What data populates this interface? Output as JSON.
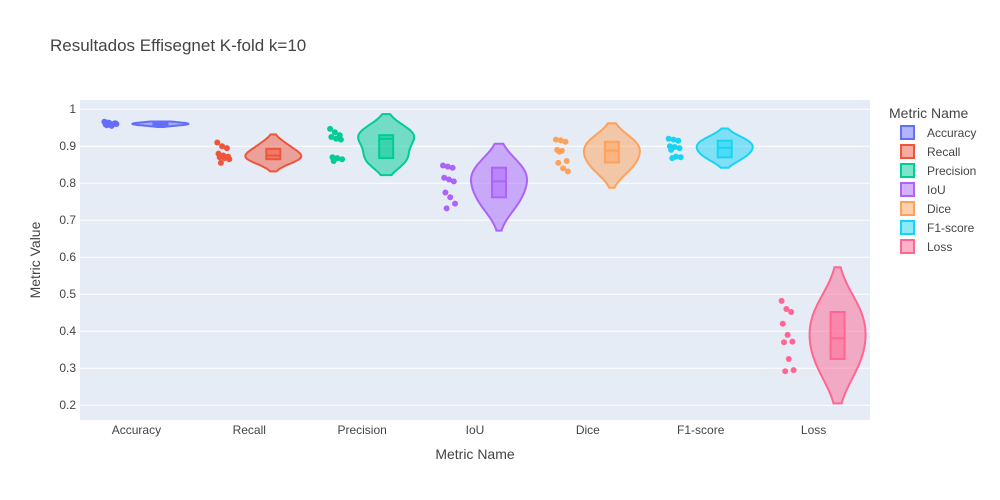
{
  "chart_data": {
    "type": "violin",
    "title": "Resultados Effisegnet K-fold k=10",
    "xlabel": "Metric Name",
    "ylabel": "Metric Value",
    "ylim": [
      0.16,
      1.025
    ],
    "yticks": [
      0.2,
      0.3,
      0.4,
      0.5,
      0.6,
      0.7,
      0.8,
      0.9,
      1
    ],
    "ytick_labels": [
      "0.2",
      "0.3",
      "0.4",
      "0.5",
      "0.6",
      "0.7",
      "0.8",
      "0.9",
      "1"
    ],
    "grid": true,
    "legend_title": "Metric Name",
    "legend_position": "right",
    "categories": [
      "Accuracy",
      "Recall",
      "Precision",
      "IoU",
      "Dice",
      "F1-score",
      "Loss"
    ],
    "series": [
      {
        "name": "Accuracy",
        "color": "#636efa",
        "points": [
          0.966,
          0.963,
          0.961,
          0.959,
          0.958,
          0.962,
          0.957,
          0.955,
          0.96,
          0.964
        ],
        "min": 0.952,
        "q1": 0.956,
        "median": 0.96,
        "q3": 0.963,
        "max": 0.967
      },
      {
        "name": "Recall",
        "color": "#ef553b",
        "points": [
          0.91,
          0.9,
          0.895,
          0.88,
          0.875,
          0.872,
          0.87,
          0.868,
          0.865,
          0.855
        ],
        "min": 0.832,
        "q1": 0.865,
        "median": 0.875,
        "q3": 0.893,
        "max": 0.932
      },
      {
        "name": "Precision",
        "color": "#00cc96",
        "points": [
          0.947,
          0.938,
          0.93,
          0.925,
          0.92,
          0.918,
          0.87,
          0.868,
          0.865,
          0.86
        ],
        "min": 0.822,
        "q1": 0.868,
        "median": 0.92,
        "q3": 0.93,
        "max": 0.987
      },
      {
        "name": "IoU",
        "color": "#ab63fa",
        "points": [
          0.848,
          0.845,
          0.842,
          0.815,
          0.81,
          0.805,
          0.775,
          0.762,
          0.745,
          0.732
        ],
        "min": 0.672,
        "q1": 0.762,
        "median": 0.805,
        "q3": 0.842,
        "max": 0.907
      },
      {
        "name": "Dice",
        "color": "#ffa15a",
        "points": [
          0.918,
          0.916,
          0.912,
          0.89,
          0.888,
          0.86,
          0.855,
          0.84,
          0.832,
          0.885
        ],
        "min": 0.788,
        "q1": 0.856,
        "median": 0.888,
        "q3": 0.912,
        "max": 0.962
      },
      {
        "name": "F1-score",
        "color": "#19d3f3",
        "points": [
          0.92,
          0.918,
          0.915,
          0.9,
          0.898,
          0.895,
          0.89,
          0.872,
          0.87,
          0.868
        ],
        "min": 0.842,
        "q1": 0.87,
        "median": 0.896,
        "q3": 0.915,
        "max": 0.948
      },
      {
        "name": "Loss",
        "color": "#ff6692",
        "points": [
          0.482,
          0.46,
          0.452,
          0.42,
          0.39,
          0.372,
          0.37,
          0.325,
          0.295,
          0.292
        ],
        "min": 0.205,
        "q1": 0.325,
        "median": 0.381,
        "q3": 0.452,
        "max": 0.573
      }
    ]
  }
}
